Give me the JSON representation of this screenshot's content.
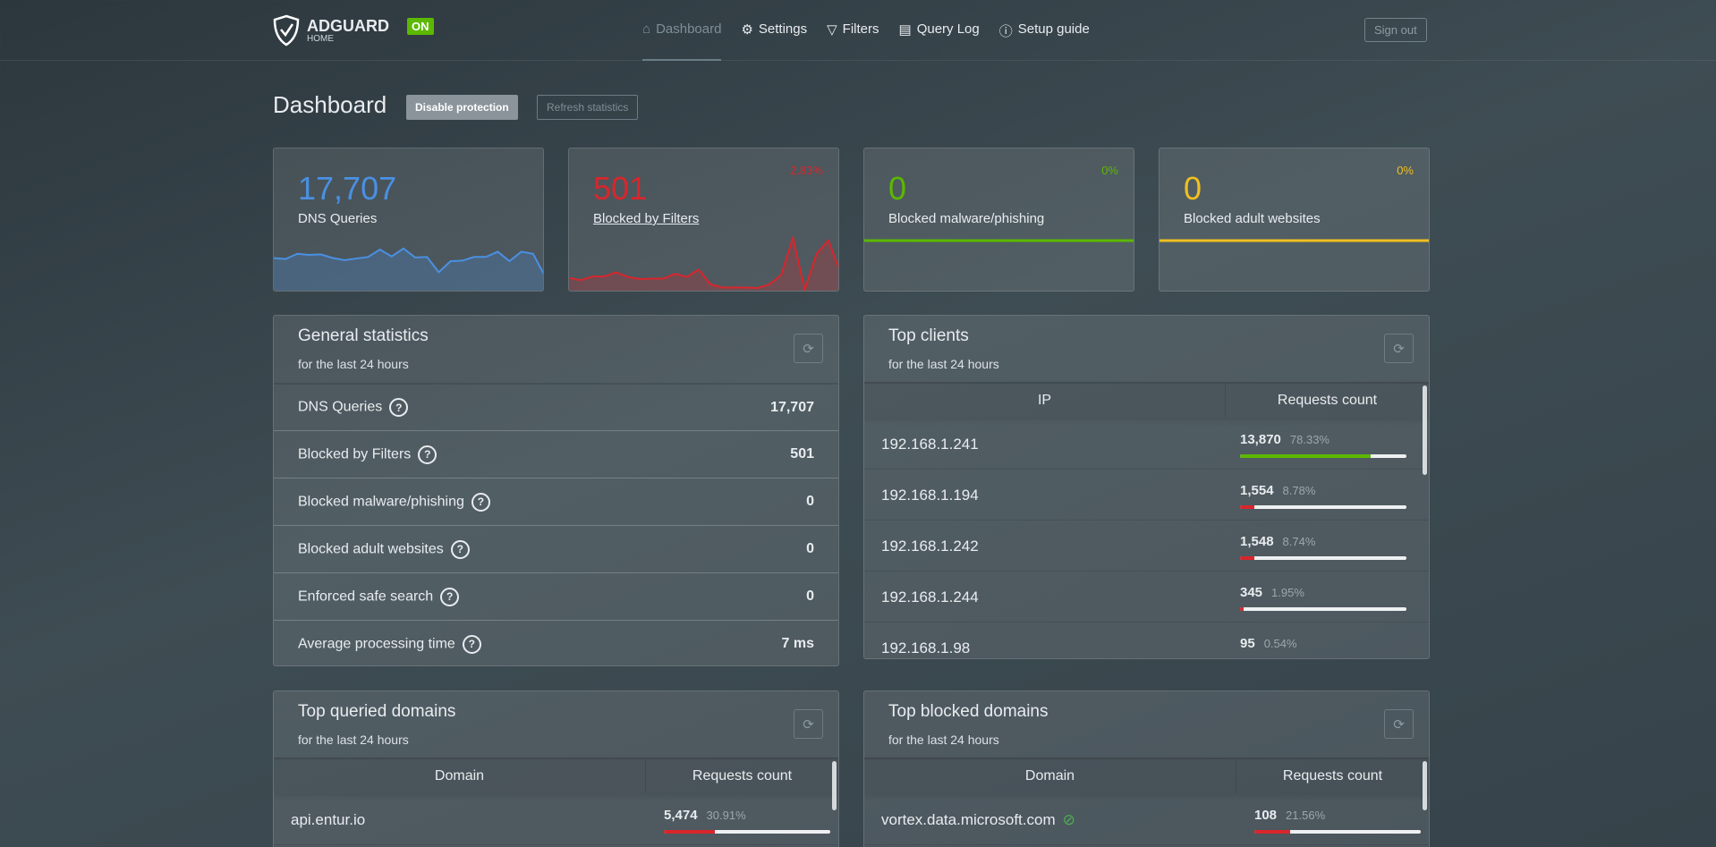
{
  "header": {
    "brand": "ADGUARD",
    "brand_sub": "HOME",
    "status_badge": "ON",
    "nav": [
      {
        "label": "Dashboard",
        "icon": "home-icon",
        "active": true
      },
      {
        "label": "Settings",
        "icon": "gear-icon"
      },
      {
        "label": "Filters",
        "icon": "filter-icon"
      },
      {
        "label": "Query Log",
        "icon": "document-icon"
      },
      {
        "label": "Setup guide",
        "icon": "help-icon"
      }
    ],
    "sign_out": "Sign out"
  },
  "page": {
    "title": "Dashboard",
    "disable_protection": "Disable protection",
    "refresh_statistics": "Refresh statistics"
  },
  "colors": {
    "blue": "#4a90e2",
    "red": "#d8262c",
    "green": "#5cb800",
    "yellow": "#f0c020"
  },
  "stats": [
    {
      "value": "17,707",
      "label": "DNS Queries",
      "percent": "",
      "color": "#4a90e2",
      "spark": [
        62,
        60,
        70,
        68,
        69,
        62,
        58,
        61,
        64,
        78,
        65,
        80,
        63,
        64,
        35,
        56,
        57,
        64,
        64,
        74,
        56,
        74,
        70,
        28
      ]
    },
    {
      "value": "501",
      "label": "Blocked by Filters",
      "percent": "2.83%",
      "color": "#d8262c",
      "spark": [
        24,
        20,
        27,
        27,
        35,
        26,
        22,
        23,
        23,
        32,
        26,
        40,
        12,
        6,
        6,
        6,
        5,
        12,
        30,
        100,
        2,
        70,
        95,
        36
      ]
    },
    {
      "value": "0",
      "label": "Blocked malware/phishing",
      "percent": "0%",
      "color": "#5cb800"
    },
    {
      "value": "0",
      "label": "Blocked adult websites",
      "percent": "0%",
      "color": "#f0c020"
    }
  ],
  "general": {
    "title": "General statistics",
    "subtitle": "for the last 24 hours",
    "rows": [
      {
        "label": "DNS Queries",
        "value": "17,707"
      },
      {
        "label": "Blocked by Filters",
        "value": "501"
      },
      {
        "label": "Blocked malware/phishing",
        "value": "0"
      },
      {
        "label": "Blocked adult websites",
        "value": "0"
      },
      {
        "label": "Enforced safe search",
        "value": "0"
      },
      {
        "label": "Average processing time",
        "value": "7 ms"
      }
    ]
  },
  "clients": {
    "title": "Top clients",
    "subtitle": "for the last 24 hours",
    "col1": "IP",
    "col2": "Requests count",
    "rows": [
      {
        "ip": "192.168.1.241",
        "count": "13,870",
        "percent": "78.33%",
        "fill": 78.33,
        "color": "#5cb800"
      },
      {
        "ip": "192.168.1.194",
        "count": "1,554",
        "percent": "8.78%",
        "fill": 8.78,
        "color": "#d8262c"
      },
      {
        "ip": "192.168.1.242",
        "count": "1,548",
        "percent": "8.74%",
        "fill": 8.74,
        "color": "#d8262c"
      },
      {
        "ip": "192.168.1.244",
        "count": "345",
        "percent": "1.95%",
        "fill": 1.95,
        "color": "#d8262c"
      },
      {
        "ip": "192.168.1.98",
        "count": "95",
        "percent": "0.54%",
        "fill": 0.54,
        "color": "#d8262c"
      }
    ]
  },
  "queried": {
    "title": "Top queried domains",
    "subtitle": "for the last 24 hours",
    "col1": "Domain",
    "col2": "Requests count",
    "rows": [
      {
        "domain": "api.entur.io",
        "count": "5,474",
        "percent": "30.91%",
        "fill": 30.91
      }
    ]
  },
  "blocked": {
    "title": "Top blocked domains",
    "subtitle": "for the last 24 hours",
    "col1": "Domain",
    "col2": "Requests count",
    "rows": [
      {
        "domain": "vortex.data.microsoft.com",
        "count": "108",
        "percent": "21.56%",
        "fill": 21.56,
        "icon": "eye-slash-icon"
      }
    ]
  }
}
